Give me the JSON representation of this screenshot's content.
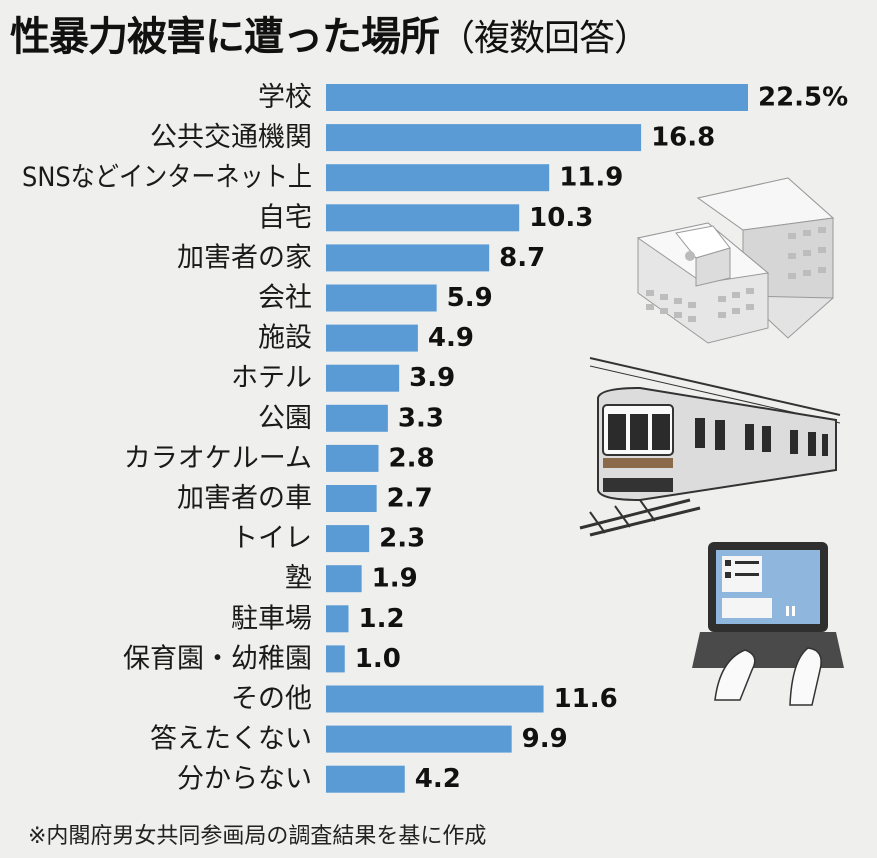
{
  "title": "性暴力被害に遭った場所",
  "title_paren": "（複数回答）",
  "note": "※内閣府男女共同参画局の調査結果を基に作成",
  "colors": {
    "bar": "#5b9bd5",
    "background": "#efefed"
  },
  "illustrations": [
    "school-building-icon",
    "train-icon",
    "laptop-icon"
  ],
  "chart_data": {
    "type": "bar",
    "orientation": "horizontal",
    "unit": "%",
    "categories": [
      "学校",
      "公共交通機関",
      "SNSなどインターネット上",
      "自宅",
      "加害者の家",
      "会社",
      "施設",
      "ホテル",
      "公園",
      "カラオケルーム",
      "加害者の車",
      "トイレ",
      "塾",
      "駐車場",
      "保育園・幼稚園",
      "その他",
      "答えたくない",
      "分からない"
    ],
    "value_labels": [
      "22.5%",
      "16.8",
      "11.9",
      "10.3",
      "8.7",
      "5.9",
      "4.9",
      "3.9",
      "3.3",
      "2.8",
      "2.7",
      "2.3",
      "1.9",
      "1.2",
      "1.0",
      "11.6",
      "9.9",
      "4.2"
    ],
    "values": [
      22.5,
      16.8,
      11.9,
      10.3,
      8.7,
      5.9,
      4.9,
      3.9,
      3.3,
      2.8,
      2.7,
      2.3,
      1.9,
      1.2,
      1.0,
      11.6,
      9.9,
      4.2
    ],
    "xlim": [
      0,
      22.5
    ],
    "grid": false,
    "legend": "none"
  }
}
